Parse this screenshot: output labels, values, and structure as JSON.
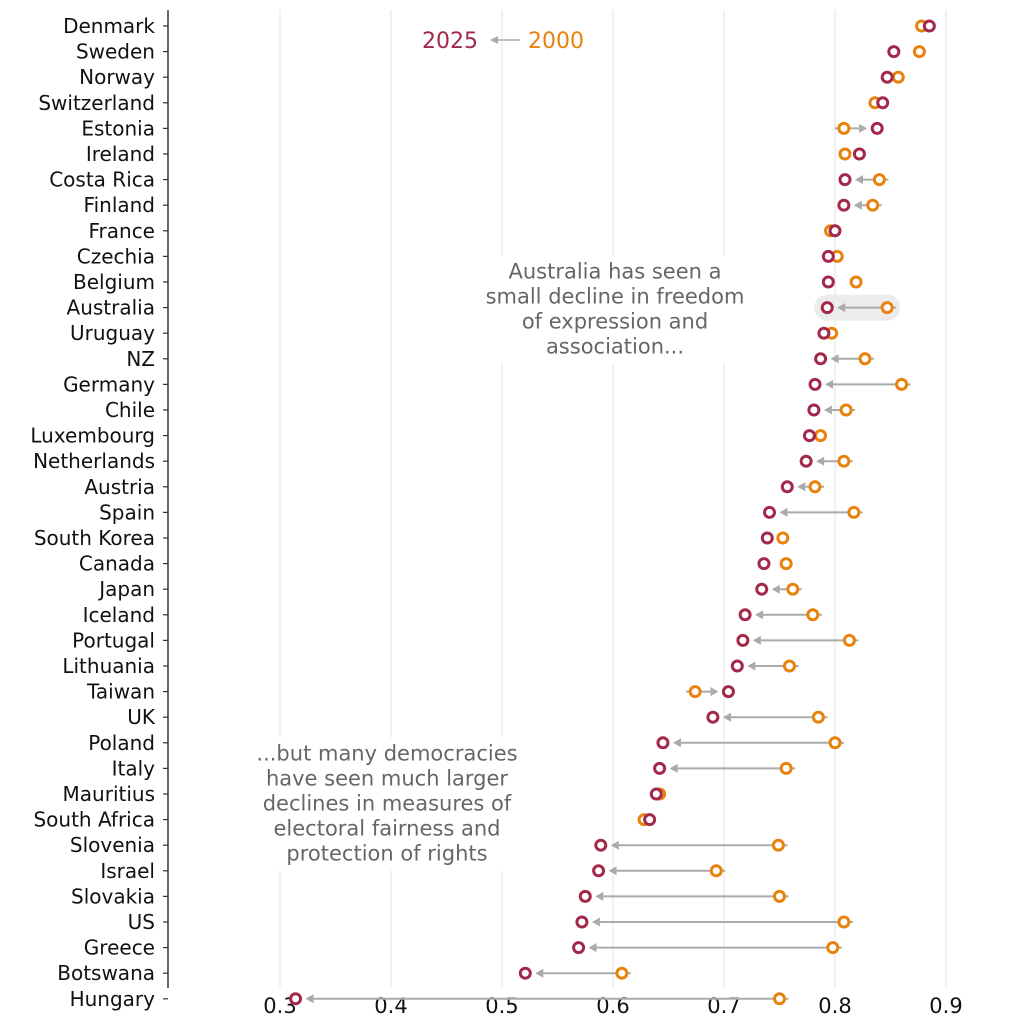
{
  "chart_data": {
    "type": "scatter",
    "subtype": "dumbbell",
    "title": "",
    "xlabel": "",
    "ylabel": "",
    "xlim": [
      0.25,
      0.92
    ],
    "x_ticks": [
      "0.3",
      "0.4",
      "0.5",
      "0.6",
      "0.7",
      "0.8",
      "0.9"
    ],
    "grid": "vertical",
    "legend": {
      "placement": "top-center",
      "new_label": "2025",
      "old_label": "2000",
      "arrow": "←"
    },
    "colors": {
      "y2025": "#a3284a",
      "y2000": "#e8820c",
      "arrow": "#aaaaaa",
      "grid": "#e3e3e3",
      "highlight": "#ececec",
      "annotation": "#666666"
    },
    "series": [
      {
        "name": "2025",
        "key": "v2025"
      },
      {
        "name": "2000",
        "key": "v2000"
      }
    ],
    "rows": [
      {
        "country": "Denmark",
        "v2025": 0.885,
        "v2000": 0.878,
        "arrow": false
      },
      {
        "country": "Sweden",
        "v2025": 0.853,
        "v2000": 0.876,
        "arrow": false
      },
      {
        "country": "Norway",
        "v2025": 0.847,
        "v2000": 0.857,
        "arrow": false
      },
      {
        "country": "Switzerland",
        "v2025": 0.843,
        "v2000": 0.836,
        "arrow": false
      },
      {
        "country": "Estonia",
        "v2025": 0.838,
        "v2000": 0.808,
        "arrow": true
      },
      {
        "country": "Ireland",
        "v2025": 0.822,
        "v2000": 0.809,
        "arrow": false
      },
      {
        "country": "Costa Rica",
        "v2025": 0.809,
        "v2000": 0.84,
        "arrow": true
      },
      {
        "country": "Finland",
        "v2025": 0.808,
        "v2000": 0.834,
        "arrow": true
      },
      {
        "country": "France",
        "v2025": 0.8,
        "v2000": 0.796,
        "arrow": false
      },
      {
        "country": "Czechia",
        "v2025": 0.794,
        "v2000": 0.802,
        "arrow": false
      },
      {
        "country": "Belgium",
        "v2025": 0.794,
        "v2000": 0.819,
        "arrow": false
      },
      {
        "country": "Australia",
        "v2025": 0.793,
        "v2000": 0.847,
        "arrow": true,
        "highlight": true
      },
      {
        "country": "Uruguay",
        "v2025": 0.79,
        "v2000": 0.797,
        "arrow": false
      },
      {
        "country": "NZ",
        "v2025": 0.787,
        "v2000": 0.827,
        "arrow": true
      },
      {
        "country": "Germany",
        "v2025": 0.782,
        "v2000": 0.86,
        "arrow": true
      },
      {
        "country": "Chile",
        "v2025": 0.781,
        "v2000": 0.81,
        "arrow": true
      },
      {
        "country": "Luxembourg",
        "v2025": 0.777,
        "v2000": 0.787,
        "arrow": false
      },
      {
        "country": "Netherlands",
        "v2025": 0.774,
        "v2000": 0.808,
        "arrow": true
      },
      {
        "country": "Austria",
        "v2025": 0.757,
        "v2000": 0.782,
        "arrow": true
      },
      {
        "country": "Spain",
        "v2025": 0.741,
        "v2000": 0.817,
        "arrow": true
      },
      {
        "country": "South Korea",
        "v2025": 0.739,
        "v2000": 0.753,
        "arrow": false
      },
      {
        "country": "Canada",
        "v2025": 0.736,
        "v2000": 0.756,
        "arrow": false
      },
      {
        "country": "Japan",
        "v2025": 0.734,
        "v2000": 0.762,
        "arrow": true
      },
      {
        "country": "Iceland",
        "v2025": 0.719,
        "v2000": 0.78,
        "arrow": true
      },
      {
        "country": "Portugal",
        "v2025": 0.717,
        "v2000": 0.813,
        "arrow": true
      },
      {
        "country": "Lithuania",
        "v2025": 0.712,
        "v2000": 0.759,
        "arrow": true
      },
      {
        "country": "Taiwan",
        "v2025": 0.704,
        "v2000": 0.674,
        "arrow": true
      },
      {
        "country": "UK",
        "v2025": 0.69,
        "v2000": 0.785,
        "arrow": true
      },
      {
        "country": "Poland",
        "v2025": 0.645,
        "v2000": 0.8,
        "arrow": true
      },
      {
        "country": "Italy",
        "v2025": 0.642,
        "v2000": 0.756,
        "arrow": true
      },
      {
        "country": "Mauritius",
        "v2025": 0.639,
        "v2000": 0.642,
        "arrow": false
      },
      {
        "country": "South Africa",
        "v2025": 0.633,
        "v2000": 0.628,
        "arrow": false
      },
      {
        "country": "Slovenia",
        "v2025": 0.589,
        "v2000": 0.749,
        "arrow": true
      },
      {
        "country": "Israel",
        "v2025": 0.587,
        "v2000": 0.693,
        "arrow": true
      },
      {
        "country": "Slovakia",
        "v2025": 0.575,
        "v2000": 0.75,
        "arrow": true
      },
      {
        "country": "US",
        "v2025": 0.572,
        "v2000": 0.808,
        "arrow": true
      },
      {
        "country": "Greece",
        "v2025": 0.569,
        "v2000": 0.798,
        "arrow": true
      },
      {
        "country": "Botswana",
        "v2025": 0.521,
        "v2000": 0.608,
        "arrow": true
      },
      {
        "country": "Hungary",
        "v2025": 0.314,
        "v2000": 0.75,
        "arrow": true
      }
    ],
    "annotations": [
      {
        "name": "australia-annotation",
        "lines": [
          "Australia has seen a",
          "small decline in freedom",
          "of expression and",
          "association..."
        ],
        "anchor_value": 0.6,
        "anchor_row": "Australia"
      },
      {
        "name": "large-declines-annotation",
        "lines": [
          "...but many democracies",
          "have seen much larger",
          "declines in measures of",
          "electoral fairness and",
          "protection of rights"
        ],
        "anchor_value": 0.4,
        "anchor_row": "Mauritius"
      }
    ]
  }
}
